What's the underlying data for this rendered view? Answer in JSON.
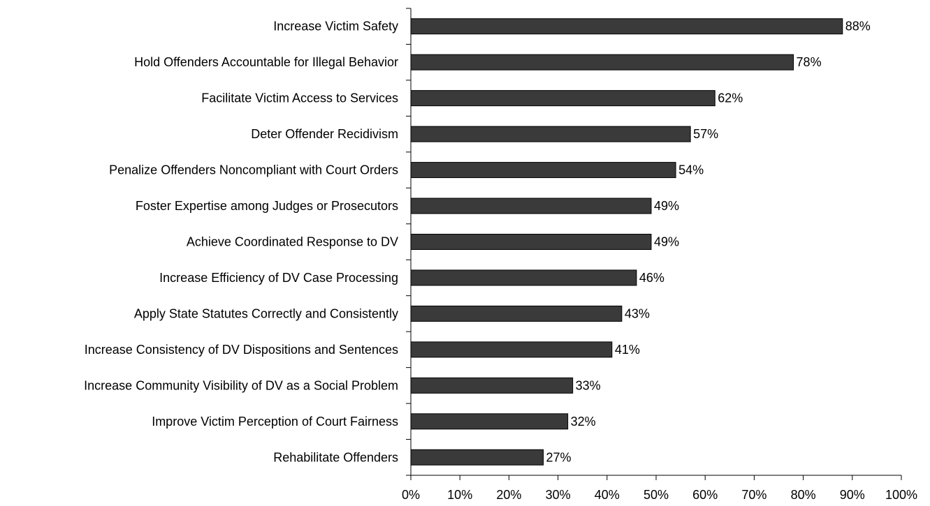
{
  "chart_data": {
    "type": "bar",
    "orientation": "horizontal",
    "title": "",
    "xlabel": "",
    "ylabel": "",
    "categories": [
      "Increase Victim Safety",
      "Hold Offenders Accountable for Illegal Behavior",
      "Facilitate Victim Access to Services",
      "Deter Offender Recidivism",
      "Penalize Offenders Noncompliant with Court Orders",
      "Foster Expertise among Judges or Prosecutors",
      "Achieve Coordinated Response to DV",
      "Increase Efficiency of DV Case Processing",
      "Apply State Statutes Correctly and Consistently",
      "Increase Consistency of DV Dispositions and Sentences",
      "Increase Community Visibility of DV as a Social Problem",
      "Improve Victim Perception of Court Fairness",
      "Rehabilitate Offenders"
    ],
    "values": [
      88,
      78,
      62,
      57,
      54,
      49,
      49,
      46,
      43,
      41,
      33,
      32,
      27
    ],
    "value_labels": [
      "88%",
      "78%",
      "62%",
      "57%",
      "54%",
      "49%",
      "49%",
      "46%",
      "43%",
      "41%",
      "33%",
      "32%",
      "27%"
    ],
    "xlim": [
      0,
      100
    ],
    "x_ticks": [
      0,
      10,
      20,
      30,
      40,
      50,
      60,
      70,
      80,
      90,
      100
    ],
    "x_tick_labels": [
      "0%",
      "10%",
      "20%",
      "30%",
      "40%",
      "50%",
      "60%",
      "70%",
      "80%",
      "90%",
      "100%"
    ],
    "grid": false,
    "legend": "none",
    "bar_color": "#3a3a3a",
    "bar_edge_color": "#000000",
    "axis_color": "#000000",
    "text_color": "#000000"
  }
}
